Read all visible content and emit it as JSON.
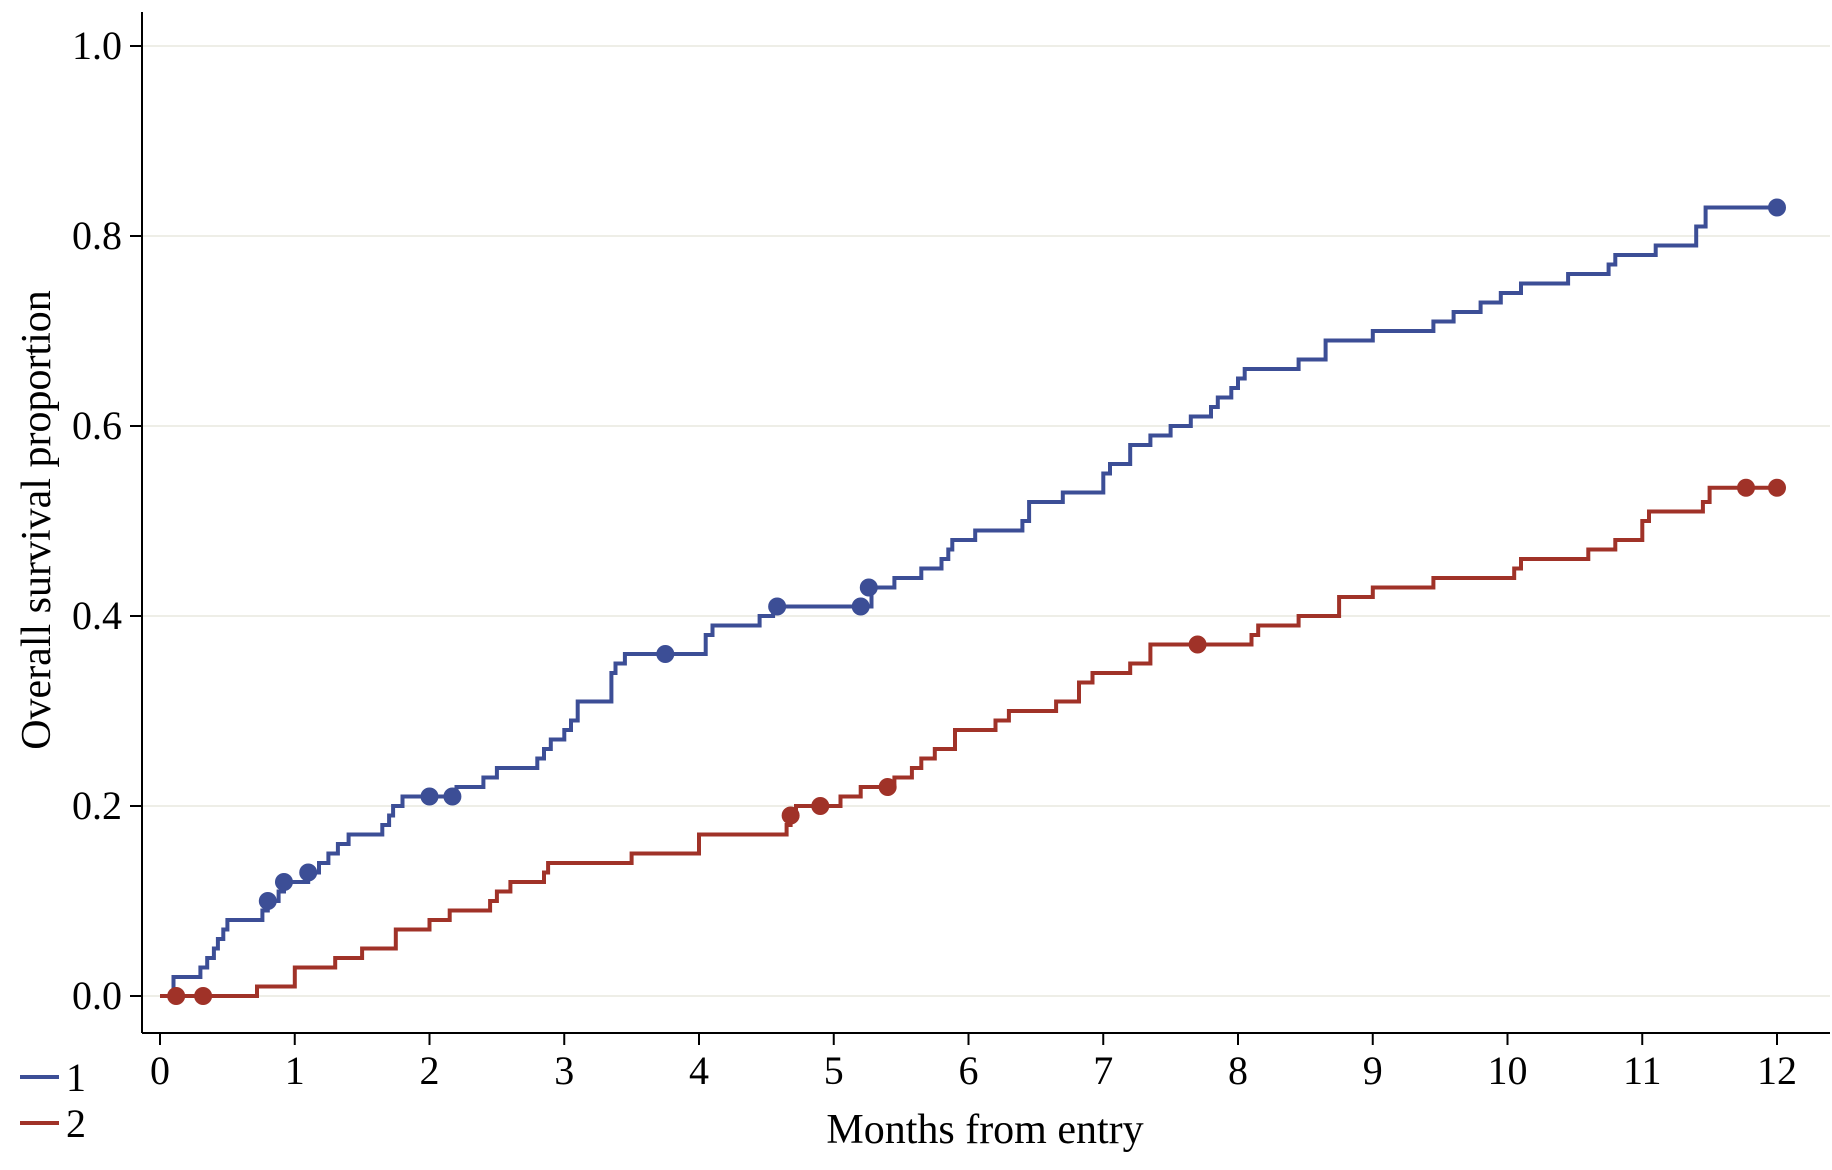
{
  "chart_data": {
    "type": "line",
    "step": true,
    "title": "",
    "xlabel": "Months from entry",
    "ylabel": "Overall survival proportion",
    "xlim": [
      0,
      12
    ],
    "ylim": [
      0,
      1
    ],
    "xticks": [
      "0",
      "1",
      "2",
      "3",
      "4",
      "5",
      "6",
      "7",
      "8",
      "9",
      "10",
      "11",
      "12"
    ],
    "yticks": [
      "0.0",
      "0.2",
      "0.4",
      "0.6",
      "0.8",
      "1.0"
    ],
    "grid": "horizontal",
    "legend": "bottom-left",
    "series": [
      {
        "name": "1",
        "color": "#3c4e96",
        "steps": [
          [
            0,
            0
          ],
          [
            0.1,
            0.02
          ],
          [
            0.3,
            0.03
          ],
          [
            0.35,
            0.04
          ],
          [
            0.4,
            0.05
          ],
          [
            0.43,
            0.06
          ],
          [
            0.47,
            0.07
          ],
          [
            0.5,
            0.08
          ],
          [
            0.76,
            0.09
          ],
          [
            0.8,
            0.1
          ],
          [
            0.88,
            0.11
          ],
          [
            0.92,
            0.12
          ],
          [
            1.1,
            0.13
          ],
          [
            1.18,
            0.14
          ],
          [
            1.25,
            0.15
          ],
          [
            1.32,
            0.16
          ],
          [
            1.4,
            0.17
          ],
          [
            1.65,
            0.18
          ],
          [
            1.7,
            0.19
          ],
          [
            1.73,
            0.2
          ],
          [
            1.8,
            0.21
          ],
          [
            2.2,
            0.22
          ],
          [
            2.4,
            0.23
          ],
          [
            2.5,
            0.24
          ],
          [
            2.8,
            0.25
          ],
          [
            2.85,
            0.26
          ],
          [
            2.9,
            0.27
          ],
          [
            3.0,
            0.28
          ],
          [
            3.05,
            0.29
          ],
          [
            3.1,
            0.31
          ],
          [
            3.35,
            0.34
          ],
          [
            3.38,
            0.35
          ],
          [
            3.45,
            0.36
          ],
          [
            4.05,
            0.38
          ],
          [
            4.1,
            0.39
          ],
          [
            4.45,
            0.4
          ],
          [
            4.55,
            0.41
          ],
          [
            5.28,
            0.43
          ],
          [
            5.45,
            0.44
          ],
          [
            5.65,
            0.45
          ],
          [
            5.8,
            0.46
          ],
          [
            5.85,
            0.47
          ],
          [
            5.88,
            0.48
          ],
          [
            6.05,
            0.49
          ],
          [
            6.4,
            0.5
          ],
          [
            6.45,
            0.52
          ],
          [
            6.7,
            0.53
          ],
          [
            7.0,
            0.55
          ],
          [
            7.05,
            0.56
          ],
          [
            7.2,
            0.58
          ],
          [
            7.35,
            0.59
          ],
          [
            7.5,
            0.6
          ],
          [
            7.65,
            0.61
          ],
          [
            7.8,
            0.62
          ],
          [
            7.85,
            0.63
          ],
          [
            7.95,
            0.64
          ],
          [
            8.0,
            0.65
          ],
          [
            8.05,
            0.66
          ],
          [
            8.45,
            0.67
          ],
          [
            8.65,
            0.69
          ],
          [
            9.0,
            0.7
          ],
          [
            9.45,
            0.71
          ],
          [
            9.6,
            0.72
          ],
          [
            9.8,
            0.73
          ],
          [
            9.95,
            0.74
          ],
          [
            10.1,
            0.75
          ],
          [
            10.45,
            0.76
          ],
          [
            10.75,
            0.77
          ],
          [
            10.8,
            0.78
          ],
          [
            11.1,
            0.79
          ],
          [
            11.4,
            0.81
          ],
          [
            11.47,
            0.83
          ],
          [
            12.0,
            0.83
          ]
        ],
        "censored": [
          [
            0.8,
            0.1
          ],
          [
            0.92,
            0.12
          ],
          [
            1.1,
            0.13
          ],
          [
            2.0,
            0.21
          ],
          [
            2.17,
            0.21
          ],
          [
            3.75,
            0.36
          ],
          [
            4.58,
            0.41
          ],
          [
            5.2,
            0.41
          ],
          [
            5.26,
            0.43
          ],
          [
            12.0,
            0.83
          ]
        ]
      },
      {
        "name": "2",
        "color": "#a03228",
        "steps": [
          [
            0,
            0
          ],
          [
            0.72,
            0.01
          ],
          [
            1.0,
            0.03
          ],
          [
            1.3,
            0.04
          ],
          [
            1.5,
            0.05
          ],
          [
            1.75,
            0.07
          ],
          [
            2.0,
            0.08
          ],
          [
            2.15,
            0.09
          ],
          [
            2.45,
            0.1
          ],
          [
            2.5,
            0.11
          ],
          [
            2.6,
            0.12
          ],
          [
            2.85,
            0.13
          ],
          [
            2.88,
            0.14
          ],
          [
            3.5,
            0.15
          ],
          [
            4.0,
            0.17
          ],
          [
            4.65,
            0.18
          ],
          [
            4.68,
            0.19
          ],
          [
            4.72,
            0.2
          ],
          [
            5.05,
            0.21
          ],
          [
            5.2,
            0.22
          ],
          [
            5.45,
            0.23
          ],
          [
            5.58,
            0.24
          ],
          [
            5.65,
            0.25
          ],
          [
            5.75,
            0.26
          ],
          [
            5.9,
            0.28
          ],
          [
            6.2,
            0.29
          ],
          [
            6.3,
            0.3
          ],
          [
            6.65,
            0.31
          ],
          [
            6.82,
            0.33
          ],
          [
            6.92,
            0.34
          ],
          [
            7.2,
            0.35
          ],
          [
            7.35,
            0.37
          ],
          [
            8.1,
            0.38
          ],
          [
            8.15,
            0.39
          ],
          [
            8.45,
            0.4
          ],
          [
            8.75,
            0.42
          ],
          [
            9.0,
            0.43
          ],
          [
            9.45,
            0.44
          ],
          [
            10.05,
            0.45
          ],
          [
            10.1,
            0.46
          ],
          [
            10.6,
            0.47
          ],
          [
            10.8,
            0.48
          ],
          [
            11.0,
            0.5
          ],
          [
            11.05,
            0.51
          ],
          [
            11.45,
            0.52
          ],
          [
            11.5,
            0.535
          ],
          [
            12.0,
            0.535
          ]
        ],
        "censored": [
          [
            0.12,
            0.0
          ],
          [
            0.32,
            0.0
          ],
          [
            4.68,
            0.19
          ],
          [
            4.9,
            0.2
          ],
          [
            5.4,
            0.22
          ],
          [
            7.7,
            0.37
          ],
          [
            11.77,
            0.535
          ],
          [
            12.0,
            0.535
          ]
        ]
      }
    ]
  }
}
